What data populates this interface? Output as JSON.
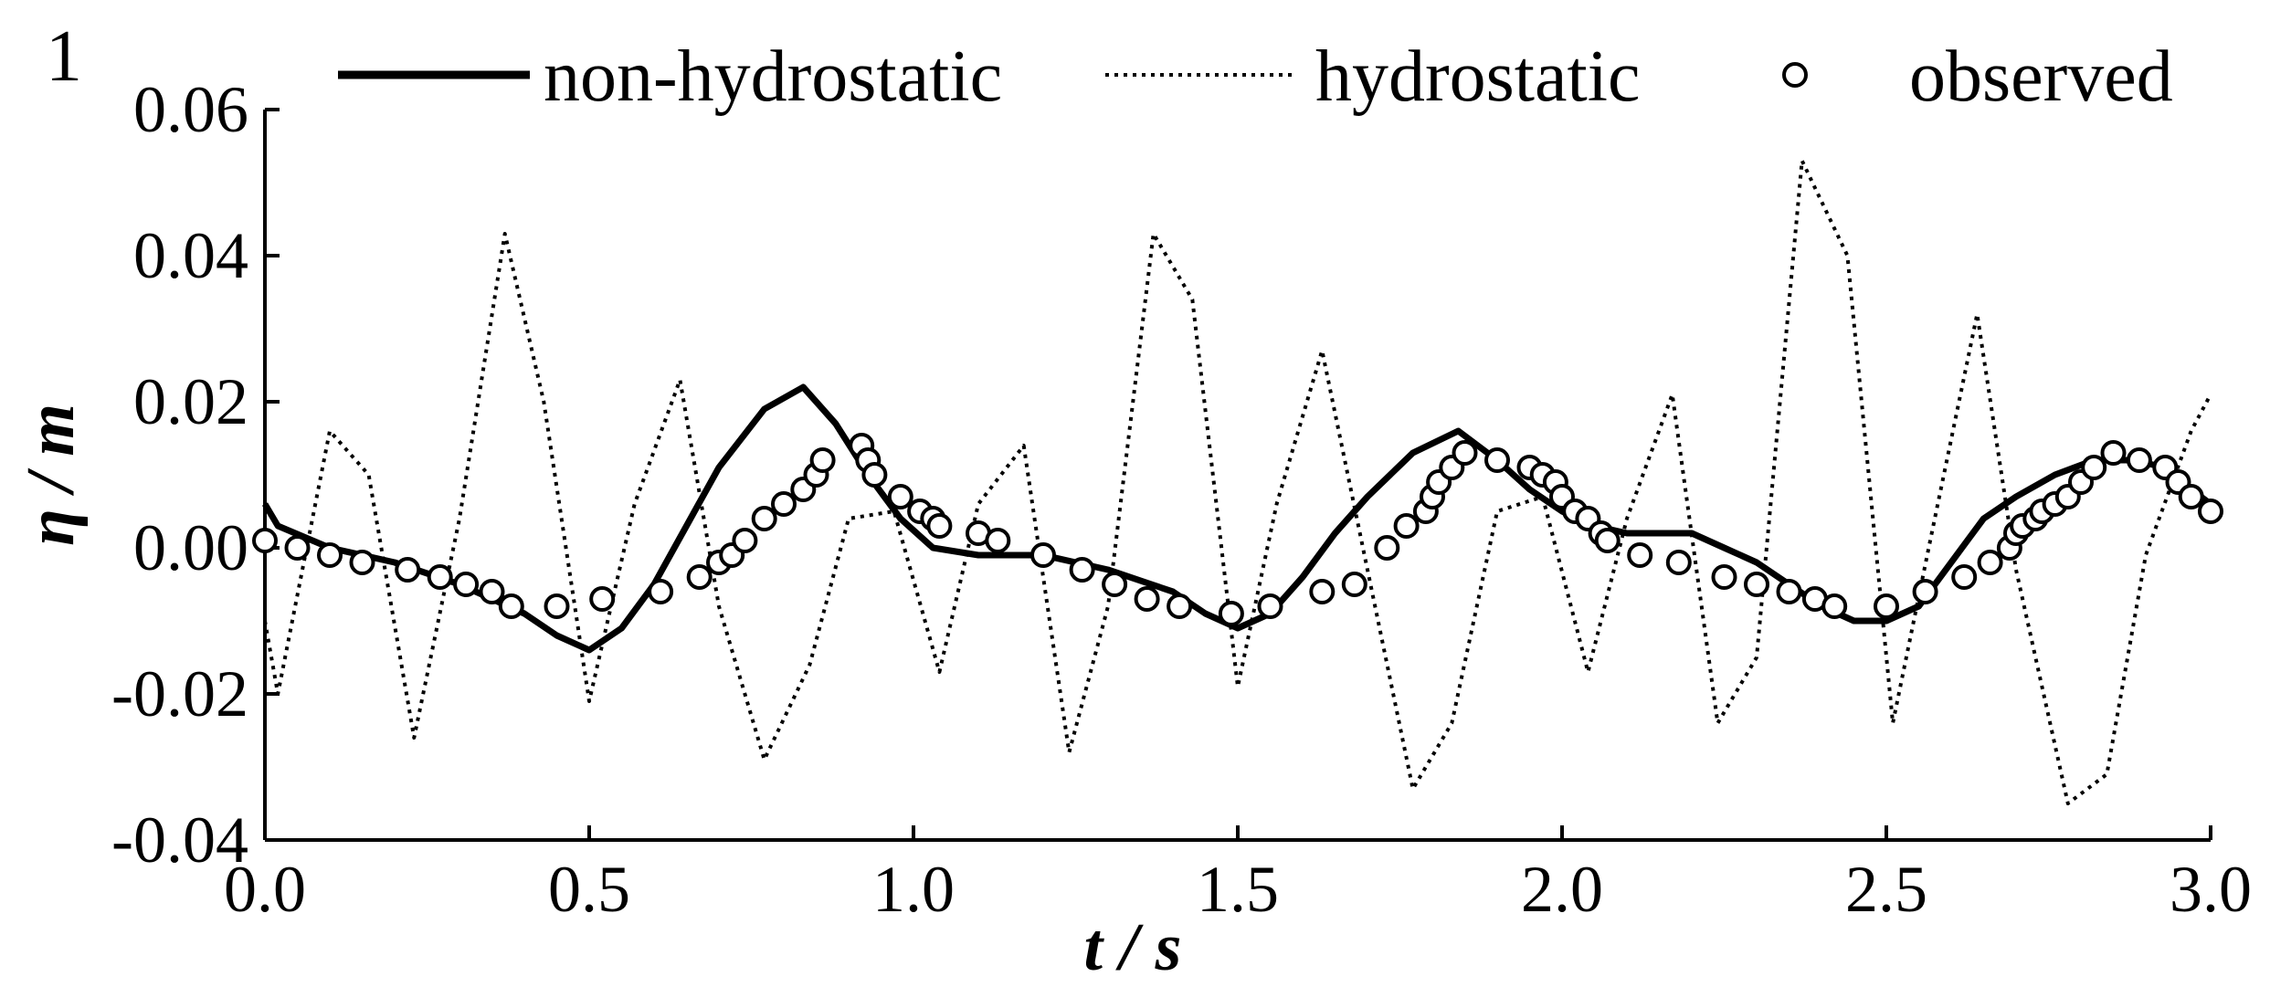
{
  "panel_label": "1",
  "legend": {
    "non_hydrostatic": "non-hydrostatic",
    "hydrostatic": "hydrostatic",
    "observed": "observed"
  },
  "colors": {
    "line": "#000000",
    "marker_fill": "#ffffff"
  },
  "chart_data": {
    "type": "line",
    "xlabel": "t / s",
    "ylabel": "η / m",
    "xlim": [
      0.0,
      3.0
    ],
    "ylim": [
      -0.04,
      0.06
    ],
    "xticks": [
      "0.0",
      "0.5",
      "1.0",
      "1.5",
      "2.0",
      "2.5",
      "3.0"
    ],
    "xtick_values": [
      0.0,
      0.5,
      1.0,
      1.5,
      2.0,
      2.5,
      3.0
    ],
    "yticks": [
      "-0.04",
      "-0.02",
      "0.00",
      "0.02",
      "0.04",
      "0.06"
    ],
    "ytick_values": [
      -0.04,
      -0.02,
      0.0,
      0.02,
      0.04,
      0.06
    ],
    "grid": false,
    "legend_position": "top",
    "series": [
      {
        "name": "non-hydrostatic",
        "style": "solid",
        "x": [
          0.0,
          0.02,
          0.1,
          0.2,
          0.3,
          0.4,
          0.45,
          0.5,
          0.55,
          0.6,
          0.65,
          0.7,
          0.77,
          0.83,
          0.88,
          0.93,
          0.98,
          1.03,
          1.1,
          1.2,
          1.3,
          1.4,
          1.45,
          1.5,
          1.55,
          1.6,
          1.65,
          1.7,
          1.77,
          1.84,
          1.9,
          1.95,
          2.0,
          2.05,
          2.1,
          2.15,
          2.2,
          2.25,
          2.3,
          2.35,
          2.4,
          2.45,
          2.5,
          2.55,
          2.6,
          2.65,
          2.7,
          2.76,
          2.82,
          2.88,
          2.93,
          2.97,
          3.0
        ],
        "y": [
          0.006,
          0.003,
          0.0,
          -0.002,
          -0.005,
          -0.009,
          -0.012,
          -0.014,
          -0.011,
          -0.005,
          0.003,
          0.011,
          0.019,
          0.022,
          0.017,
          0.01,
          0.004,
          0.0,
          -0.001,
          -0.001,
          -0.003,
          -0.006,
          -0.009,
          -0.011,
          -0.009,
          -0.004,
          0.002,
          0.007,
          0.013,
          0.016,
          0.012,
          0.008,
          0.005,
          0.003,
          0.002,
          0.002,
          0.002,
          0.0,
          -0.002,
          -0.005,
          -0.008,
          -0.01,
          -0.01,
          -0.008,
          -0.002,
          0.004,
          0.007,
          0.01,
          0.012,
          0.012,
          0.011,
          0.008,
          0.006
        ]
      },
      {
        "name": "hydrostatic",
        "style": "dotted",
        "x": [
          0.0,
          0.02,
          0.1,
          0.16,
          0.23,
          0.3,
          0.37,
          0.43,
          0.5,
          0.57,
          0.64,
          0.7,
          0.77,
          0.84,
          0.9,
          0.97,
          1.04,
          1.1,
          1.17,
          1.24,
          1.3,
          1.37,
          1.43,
          1.5,
          1.56,
          1.63,
          1.7,
          1.77,
          1.83,
          1.9,
          1.97,
          2.04,
          2.1,
          2.17,
          2.24,
          2.3,
          2.37,
          2.44,
          2.51,
          2.57,
          2.64,
          2.7,
          2.78,
          2.84,
          2.9,
          2.97,
          3.0
        ],
        "y": [
          -0.01,
          -0.02,
          0.016,
          0.01,
          -0.026,
          0.004,
          0.043,
          0.02,
          -0.021,
          0.006,
          0.023,
          -0.008,
          -0.029,
          -0.016,
          0.004,
          0.005,
          -0.017,
          0.006,
          0.014,
          -0.028,
          -0.008,
          0.043,
          0.034,
          -0.019,
          0.006,
          0.027,
          -0.003,
          -0.033,
          -0.024,
          0.005,
          0.007,
          -0.017,
          0.004,
          0.021,
          -0.024,
          -0.015,
          0.053,
          0.04,
          -0.024,
          0.002,
          0.032,
          -0.003,
          -0.035,
          -0.031,
          -0.001,
          0.016,
          0.021
        ]
      },
      {
        "name": "observed",
        "style": "marker",
        "x": [
          0.0,
          0.05,
          0.1,
          0.15,
          0.22,
          0.27,
          0.31,
          0.35,
          0.38,
          0.45,
          0.52,
          0.61,
          0.67,
          0.7,
          0.72,
          0.74,
          0.77,
          0.8,
          0.83,
          0.85,
          0.86,
          0.92,
          0.93,
          0.94,
          0.98,
          1.01,
          1.03,
          1.04,
          1.1,
          1.13,
          1.2,
          1.26,
          1.31,
          1.36,
          1.41,
          1.49,
          1.55,
          1.63,
          1.68,
          1.73,
          1.76,
          1.79,
          1.8,
          1.81,
          1.83,
          1.85,
          1.9,
          1.95,
          1.97,
          1.99,
          2.0,
          2.02,
          2.04,
          2.06,
          2.07,
          2.12,
          2.18,
          2.25,
          2.3,
          2.35,
          2.39,
          2.42,
          2.5,
          2.56,
          2.62,
          2.66,
          2.69,
          2.7,
          2.71,
          2.73,
          2.74,
          2.76,
          2.78,
          2.8,
          2.82,
          2.85,
          2.89,
          2.93,
          2.95,
          2.97,
          3.0
        ],
        "y": [
          0.001,
          0.0,
          -0.001,
          -0.002,
          -0.003,
          -0.004,
          -0.005,
          -0.006,
          -0.008,
          -0.008,
          -0.007,
          -0.006,
          -0.004,
          -0.002,
          -0.001,
          0.001,
          0.004,
          0.006,
          0.008,
          0.01,
          0.012,
          0.014,
          0.012,
          0.01,
          0.007,
          0.005,
          0.004,
          0.003,
          0.002,
          0.001,
          -0.001,
          -0.003,
          -0.005,
          -0.007,
          -0.008,
          -0.009,
          -0.008,
          -0.006,
          -0.005,
          0.0,
          0.003,
          0.005,
          0.007,
          0.009,
          0.011,
          0.013,
          0.012,
          0.011,
          0.01,
          0.009,
          0.007,
          0.005,
          0.004,
          0.002,
          0.001,
          -0.001,
          -0.002,
          -0.004,
          -0.005,
          -0.006,
          -0.007,
          -0.008,
          -0.008,
          -0.006,
          -0.004,
          -0.002,
          0.0,
          0.002,
          0.003,
          0.004,
          0.005,
          0.006,
          0.007,
          0.009,
          0.011,
          0.013,
          0.012,
          0.011,
          0.009,
          0.007,
          0.005
        ]
      }
    ]
  }
}
